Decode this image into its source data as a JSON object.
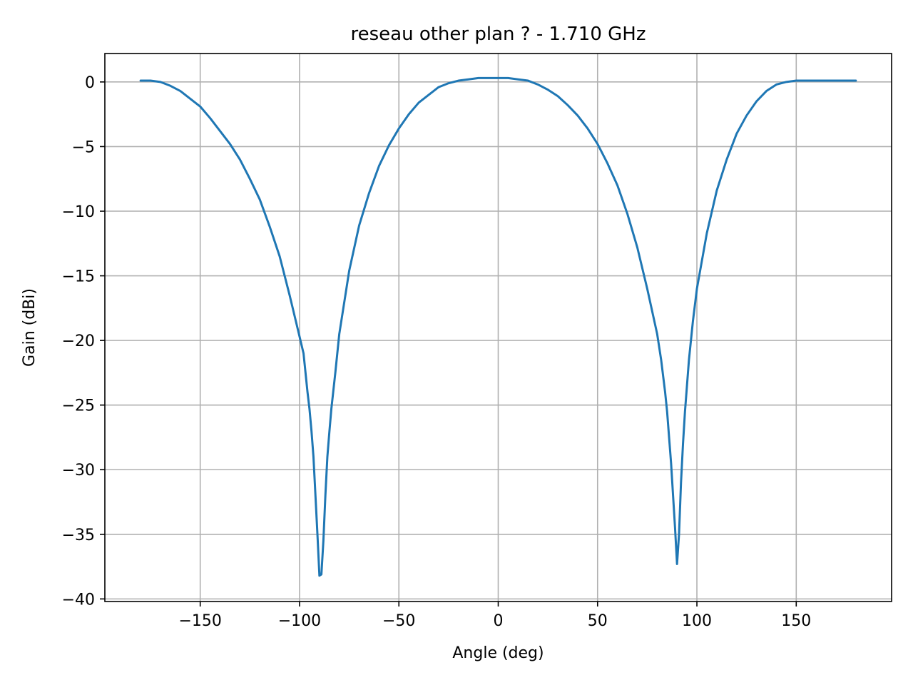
{
  "chart_data": {
    "type": "line",
    "title": "reseau other plan ? - 1.710 GHz",
    "xlabel": "Angle (deg)",
    "ylabel": "Gain (dBi)",
    "xlim": [
      -198,
      198
    ],
    "ylim": [
      -40.2,
      2.2
    ],
    "xticks": [
      -150,
      -100,
      -50,
      0,
      50,
      100,
      150
    ],
    "xtick_labels": [
      "−150",
      "−100",
      "−50",
      "0",
      "50",
      "100",
      "150"
    ],
    "yticks": [
      0,
      -5,
      -10,
      -15,
      -20,
      -25,
      -30,
      -35,
      -40
    ],
    "ytick_labels": [
      "0",
      "−5",
      "−10",
      "−15",
      "−20",
      "−25",
      "−30",
      "−35",
      "−40"
    ],
    "grid": true,
    "series": [
      {
        "color": "#1f77b4",
        "x": [
          -180,
          -175,
          -170,
          -165,
          -160,
          -155,
          -150,
          -145,
          -140,
          -135,
          -130,
          -125,
          -120,
          -115,
          -110,
          -105,
          -100,
          -98,
          -96,
          -95,
          -94,
          -93,
          -92,
          -91,
          -90,
          -89,
          -88,
          -87,
          -86,
          -85,
          -84,
          -82,
          -80,
          -75,
          -70,
          -65,
          -60,
          -55,
          -50,
          -45,
          -40,
          -35,
          -30,
          -25,
          -20,
          -15,
          -10,
          -5,
          0,
          5,
          10,
          15,
          20,
          25,
          30,
          35,
          40,
          45,
          50,
          55,
          60,
          65,
          70,
          75,
          80,
          82,
          84,
          85,
          86,
          87,
          88,
          89,
          90,
          91,
          92,
          93,
          94,
          95,
          96,
          98,
          100,
          105,
          110,
          115,
          120,
          125,
          130,
          135,
          140,
          145,
          150,
          155,
          160,
          165,
          170,
          175,
          180
        ],
        "values": [
          0.1,
          0.1,
          0.0,
          -0.3,
          -0.7,
          -1.3,
          -1.9,
          -2.8,
          -3.8,
          -4.8,
          -6.0,
          -7.5,
          -9.1,
          -11.2,
          -13.5,
          -16.5,
          -19.7,
          -21.0,
          -24.0,
          -25.3,
          -27.0,
          -29.0,
          -32.0,
          -35.0,
          -38.2,
          -38.1,
          -35.5,
          -32.0,
          -29.0,
          -27.1,
          -25.3,
          -22.5,
          -19.5,
          -14.6,
          -11.1,
          -8.6,
          -6.5,
          -4.9,
          -3.6,
          -2.5,
          -1.6,
          -1.0,
          -0.4,
          -0.1,
          0.1,
          0.2,
          0.3,
          0.3,
          0.3,
          0.3,
          0.2,
          0.1,
          -0.2,
          -0.6,
          -1.1,
          -1.8,
          -2.6,
          -3.6,
          -4.8,
          -6.3,
          -8.0,
          -10.2,
          -12.8,
          -16.0,
          -19.5,
          -21.5,
          -24.0,
          -25.5,
          -27.5,
          -29.5,
          -32.0,
          -34.5,
          -37.3,
          -35.0,
          -31.0,
          -28.0,
          -25.5,
          -23.5,
          -21.5,
          -18.5,
          -16.0,
          -11.7,
          -8.4,
          -6.0,
          -4.0,
          -2.6,
          -1.5,
          -0.7,
          -0.2,
          0.0,
          0.1,
          0.1,
          0.1,
          0.1,
          0.1,
          0.1,
          0.1
        ]
      }
    ]
  }
}
